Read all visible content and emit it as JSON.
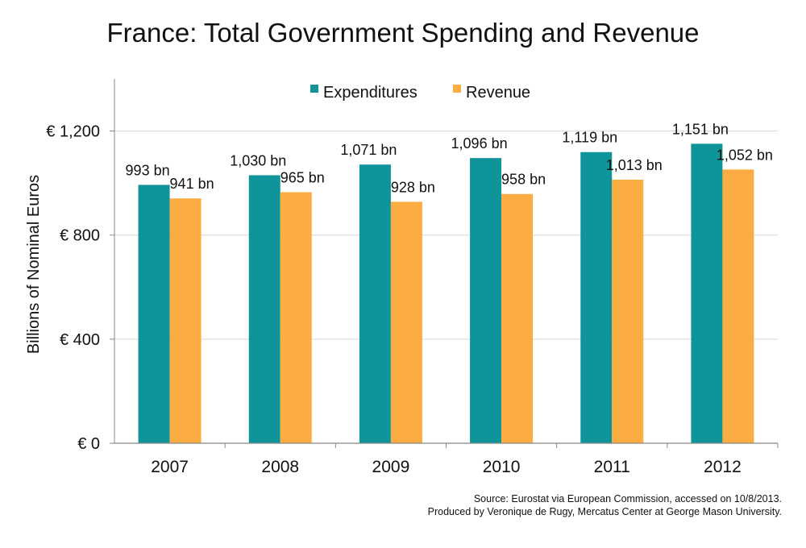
{
  "chart_data": {
    "type": "bar",
    "title": "France: Total Government Spending and Revenue",
    "ylabel": "Billions of Nominal Euros",
    "xlabel": "",
    "categories": [
      "2007",
      "2008",
      "2009",
      "2010",
      "2011",
      "2012"
    ],
    "series": [
      {
        "name": "Expenditures",
        "color": "#0f9499",
        "values": [
          993,
          1030,
          1071,
          1096,
          1119,
          1151
        ],
        "labels": [
          "993 bn",
          "1,030 bn",
          "1,071 bn",
          "1,096 bn",
          "1,119 bn",
          "1,151 bn"
        ]
      },
      {
        "name": "Revenue",
        "color": "#fbad43",
        "values": [
          941,
          965,
          928,
          958,
          1013,
          1052
        ],
        "labels": [
          "941 bn",
          "965 bn",
          "928 bn",
          "958 bn",
          "1,013 bn",
          "1,052 bn"
        ]
      }
    ],
    "ylim": [
      0,
      1400
    ],
    "yticks": [
      0,
      400,
      800,
      1200
    ],
    "ytick_labels": [
      "€ 0",
      "€ 400",
      "€ 800",
      "€ 1,200"
    ],
    "grid": true,
    "legend_position": "top-center"
  },
  "source": {
    "line1": "Source: Eurostat via European Commission, accessed on 10/8/2013.",
    "line2": "Produced by Veronique de Rugy, Mercatus Center at George Mason University."
  }
}
